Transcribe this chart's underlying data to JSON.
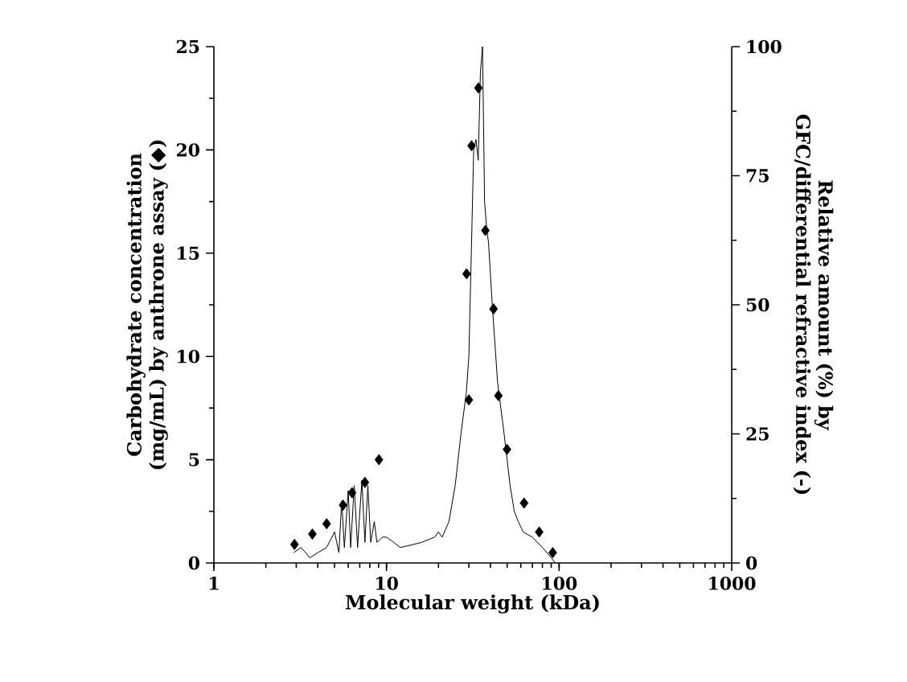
{
  "chart_data": {
    "type": "scatter",
    "xlabel": "Molecular weight (kDa)",
    "ylabel": "Carbohydrate concentration (mg/mL) by anthrone assay (◆)",
    "y2label": "Relative amount (%) by GFC/differential refractive index (-)",
    "log": "x",
    "xlim": [
      1,
      1000
    ],
    "xticks": [
      1,
      10,
      100,
      1000
    ],
    "ylim": [
      0,
      25
    ],
    "yticks": [
      0,
      5,
      10,
      15,
      20,
      25
    ],
    "y2lim": [
      0,
      100
    ],
    "y2ticks": [
      0,
      25,
      50,
      75,
      100
    ],
    "series": [
      {
        "marker": "diamond",
        "color": "#000000",
        "x": [
          2.93,
          3.72,
          4.5,
          5.6,
          6.32,
          7.5,
          9.04,
          29.1,
          30,
          31.1,
          34.1,
          37.4,
          41.7,
          44.5,
          49.9,
          62.7,
          76.7,
          91.8
        ],
        "values": [
          0.9,
          1.4,
          1.9,
          2.8,
          3.4,
          3.9,
          5.0,
          14.0,
          7.9,
          20.2,
          23.0,
          16.1,
          12.3,
          8.1,
          5.5,
          2.9,
          1.5,
          0.5
        ]
      },
      {
        "type": "line",
        "axis": "y2",
        "color": "#000000",
        "x": [
          2.9,
          3.2,
          3.6,
          4.0,
          4.5,
          5.0,
          5.3,
          5.5,
          5.7,
          6.0,
          6.2,
          6.5,
          6.8,
          7.2,
          7.5,
          7.8,
          8.1,
          8.5,
          8.8,
          9.5,
          10,
          11,
          12,
          14,
          16,
          19,
          20,
          21,
          23,
          25,
          27,
          29,
          30,
          31,
          32,
          33,
          34,
          35,
          36,
          37,
          38,
          39,
          41,
          44,
          48,
          52,
          55,
          58,
          62,
          70,
          80,
          90,
          95
        ],
        "values": [
          2,
          3,
          1,
          2,
          3,
          6,
          2,
          12,
          3,
          14,
          3,
          15,
          3,
          16,
          4,
          15,
          4,
          8,
          4,
          5,
          5,
          4,
          3,
          3.5,
          4,
          5,
          6,
          5,
          8,
          15,
          25,
          33,
          40,
          60,
          80,
          82,
          78,
          95,
          100,
          70,
          65,
          62,
          50,
          35,
          25,
          15,
          10,
          8,
          6,
          5,
          3,
          1,
          0
        ]
      }
    ]
  }
}
